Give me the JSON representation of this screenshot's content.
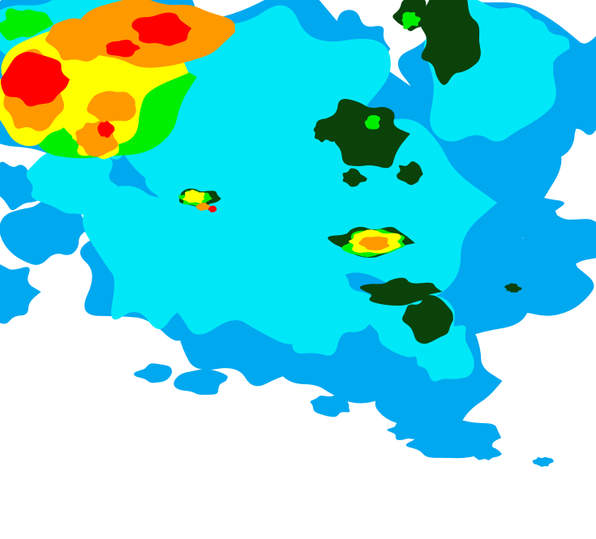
{
  "map": {
    "type": "precipitation-radar",
    "colors": {
      "background": "#ffffff",
      "light": "#00a8f0",
      "light_moderate": "#00e8f8",
      "moderate": "#0a420a",
      "moderate_heavy": "#00ee00",
      "heavy": "#ffff00",
      "very_heavy": "#ff9900",
      "extreme": "#ff0000"
    }
  }
}
